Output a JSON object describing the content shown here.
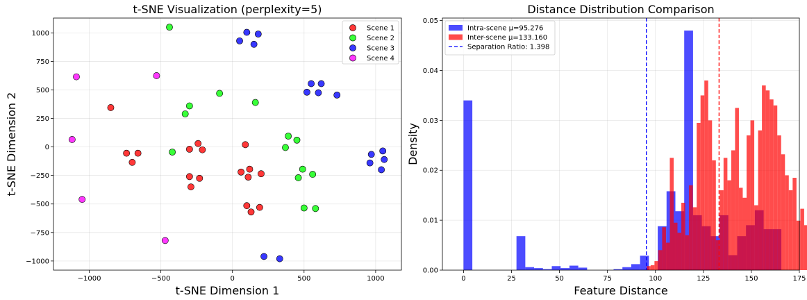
{
  "chart_data": [
    {
      "type": "scatter",
      "title": "t-SNE Visualization (perplexity=5)",
      "xlabel": "t-SNE Dimension 1",
      "ylabel": "t-SNE Dimension 2",
      "xlim": [
        -1250,
        1180
      ],
      "ylim": [
        -1080,
        1130
      ],
      "xticks": [
        -1000,
        -500,
        0,
        500,
        1000
      ],
      "yticks": [
        -1000,
        -750,
        -500,
        -250,
        0,
        250,
        500,
        750,
        1000
      ],
      "xtick_labels": [
        "−1000",
        "−500",
        "0",
        "500",
        "1000"
      ],
      "ytick_labels": [
        "−1000",
        "−750",
        "−500",
        "−250",
        "0",
        "250",
        "500",
        "750",
        "1000"
      ],
      "grid": true,
      "legend": "top-right",
      "series": [
        {
          "name": "Scene 1",
          "color": "#ff0000",
          "points": [
            [
              -850,
              345
            ],
            [
              -740,
              -55
            ],
            [
              -660,
              -55
            ],
            [
              -700,
              -135
            ],
            [
              -300,
              -20
            ],
            [
              -240,
              30
            ],
            [
              -210,
              -25
            ],
            [
              -300,
              -260
            ],
            [
              -290,
              -350
            ],
            [
              -230,
              -275
            ],
            [
              90,
              20
            ],
            [
              60,
              -220
            ],
            [
              120,
              -195
            ],
            [
              110,
              -265
            ],
            [
              200,
              -235
            ],
            [
              100,
              -515
            ],
            [
              130,
              -570
            ],
            [
              190,
              -530
            ]
          ]
        },
        {
          "name": "Scene 2",
          "color": "#00ff00",
          "points": [
            [
              -440,
              1050
            ],
            [
              -90,
              470
            ],
            [
              -300,
              360
            ],
            [
              -330,
              290
            ],
            [
              160,
              390
            ],
            [
              -420,
              -45
            ],
            [
              390,
              95
            ],
            [
              450,
              60
            ],
            [
              370,
              -5
            ],
            [
              490,
              -195
            ],
            [
              560,
              -240
            ],
            [
              460,
              -270
            ],
            [
              500,
              -535
            ],
            [
              580,
              -540
            ]
          ]
        },
        {
          "name": "Scene 3",
          "color": "#0000ff",
          "points": [
            [
              100,
              1005
            ],
            [
              180,
              990
            ],
            [
              50,
              930
            ],
            [
              150,
              900
            ],
            [
              550,
              555
            ],
            [
              620,
              555
            ],
            [
              520,
              480
            ],
            [
              600,
              475
            ],
            [
              730,
              455
            ],
            [
              970,
              -65
            ],
            [
              1050,
              -35
            ],
            [
              1060,
              -110
            ],
            [
              960,
              -140
            ],
            [
              1040,
              -200
            ],
            [
              220,
              -960
            ],
            [
              330,
              -980
            ]
          ]
        },
        {
          "name": "Scene 4",
          "color": "#ff00ff",
          "points": [
            [
              -1090,
              615
            ],
            [
              -530,
              625
            ],
            [
              -1120,
              65
            ],
            [
              -1050,
              -460
            ],
            [
              -470,
              -820
            ]
          ]
        }
      ]
    },
    {
      "type": "histogram",
      "title": "Distance Distribution Comparison",
      "xlabel": "Feature Distance",
      "ylabel": "Density",
      "xlim": [
        -11,
        175
      ],
      "ylim": [
        0,
        0.0505
      ],
      "xticks": [
        0,
        25,
        50,
        75,
        100,
        125,
        150,
        175
      ],
      "xtick_labels": [
        "0",
        "25",
        "50",
        "75",
        "100",
        "125",
        "150",
        "175"
      ],
      "yticks": [
        0,
        0.01,
        0.02,
        0.03,
        0.04,
        0.05
      ],
      "ytick_labels": [
        "0.00",
        "0.01",
        "0.02",
        "0.03",
        "0.04",
        "0.05"
      ],
      "grid": true,
      "legend": "top-left",
      "series": [
        {
          "name": "Intra-scene μ=95.276",
          "color": "#0000ff",
          "bin_start": 0,
          "bin_width": 4.6,
          "values": [
            0.034,
            0,
            0,
            0,
            0,
            0,
            0.0068,
            0.0006,
            0.0004,
            0.0002,
            0.0008,
            0.0004,
            0.0009,
            0.0005,
            0,
            0,
            0,
            0.0002,
            0.0006,
            0.0012,
            0.0029,
            0,
            0.0088,
            0.0158,
            0.0118,
            0.048,
            0.011,
            0.0088,
            0.0068,
            0.011,
            0.003,
            0.0068,
            0.009,
            0.012,
            0.0082,
            0.0082,
            0
          ]
        },
        {
          "name": "Inter-scene μ=133.160",
          "color": "#ff0000",
          "bin_start": 95.5,
          "bin_width": 2.0,
          "values": [
            0.0008,
            0.001,
            0.0018,
            0.004,
            0.0086,
            0.0055,
            0.0225,
            0.0095,
            0.0075,
            0.0135,
            0.007,
            0.017,
            0.0126,
            0.0295,
            0.035,
            0.038,
            0.03,
            0.022,
            0.006,
            0.016,
            0.0225,
            0.018,
            0.024,
            0.0325,
            0.0165,
            0.0145,
            0.027,
            0.03,
            0.013,
            0.028,
            0.037,
            0.036,
            0.0342,
            0.033,
            0.027,
            0.0232,
            0.019,
            0.016,
            0.0185,
            0.0099,
            0.0123,
            0.009,
            0.0105,
            0.0088,
            0.0013,
            0.0017,
            0.0025,
            0.0011,
            0.0011,
            0.0007,
            0.0013,
            0.0004,
            0,
            0.0
          ]
        },
        {
          "name": "Separation Ratio: 1.398",
          "color": "#0000ff",
          "style": "dashed",
          "vlines": [
            {
              "x": 95.276,
              "color": "#0000ff"
            },
            {
              "x": 133.16,
              "color": "#ff0000"
            }
          ]
        }
      ]
    }
  ]
}
